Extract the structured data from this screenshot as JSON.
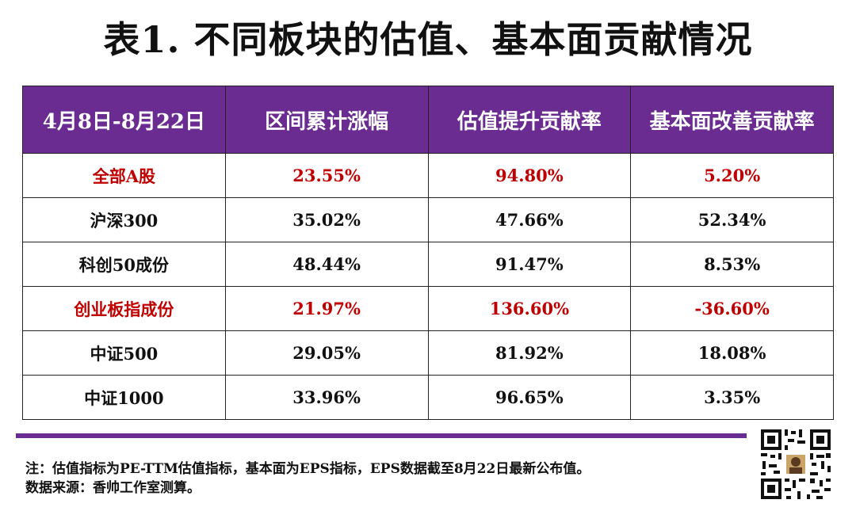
{
  "title": "表1. 不同板块的估值、基本面贡献情况",
  "chart_data": {
    "type": "table",
    "columns": [
      "4月8日-8月22日",
      "区间累计涨幅",
      "估值提升贡献率",
      "基本面改善贡献率"
    ],
    "rows": [
      {
        "name": "全部A股",
        "cells": [
          "23.55%",
          "94.80%",
          "5.20%"
        ],
        "highlight": true
      },
      {
        "name": "沪深300",
        "cells": [
          "35.02%",
          "47.66%",
          "52.34%"
        ],
        "highlight": false
      },
      {
        "name": "科创50成份",
        "cells": [
          "48.44%",
          "91.47%",
          "8.53%"
        ],
        "highlight": false
      },
      {
        "name": "创业板指成份",
        "cells": [
          "21.97%",
          "136.60%",
          "-36.60%"
        ],
        "highlight": true
      },
      {
        "name": "中证500",
        "cells": [
          "29.05%",
          "81.92%",
          "18.08%"
        ],
        "highlight": false
      },
      {
        "name": "中证1000",
        "cells": [
          "33.96%",
          "96.65%",
          "3.35%"
        ],
        "highlight": false
      }
    ]
  },
  "colors": {
    "header_bg": "#6a2c91",
    "highlight_text": "#c00000",
    "divider": "#6a2c91"
  },
  "notes": {
    "line1": "注：估值指标为PE-TTM估值指标，基本面为EPS指标，EPS数据截至8月22日最新公布值。",
    "line2": "数据来源：香帅工作室测算。"
  },
  "qr_icon": "qr-code-icon"
}
